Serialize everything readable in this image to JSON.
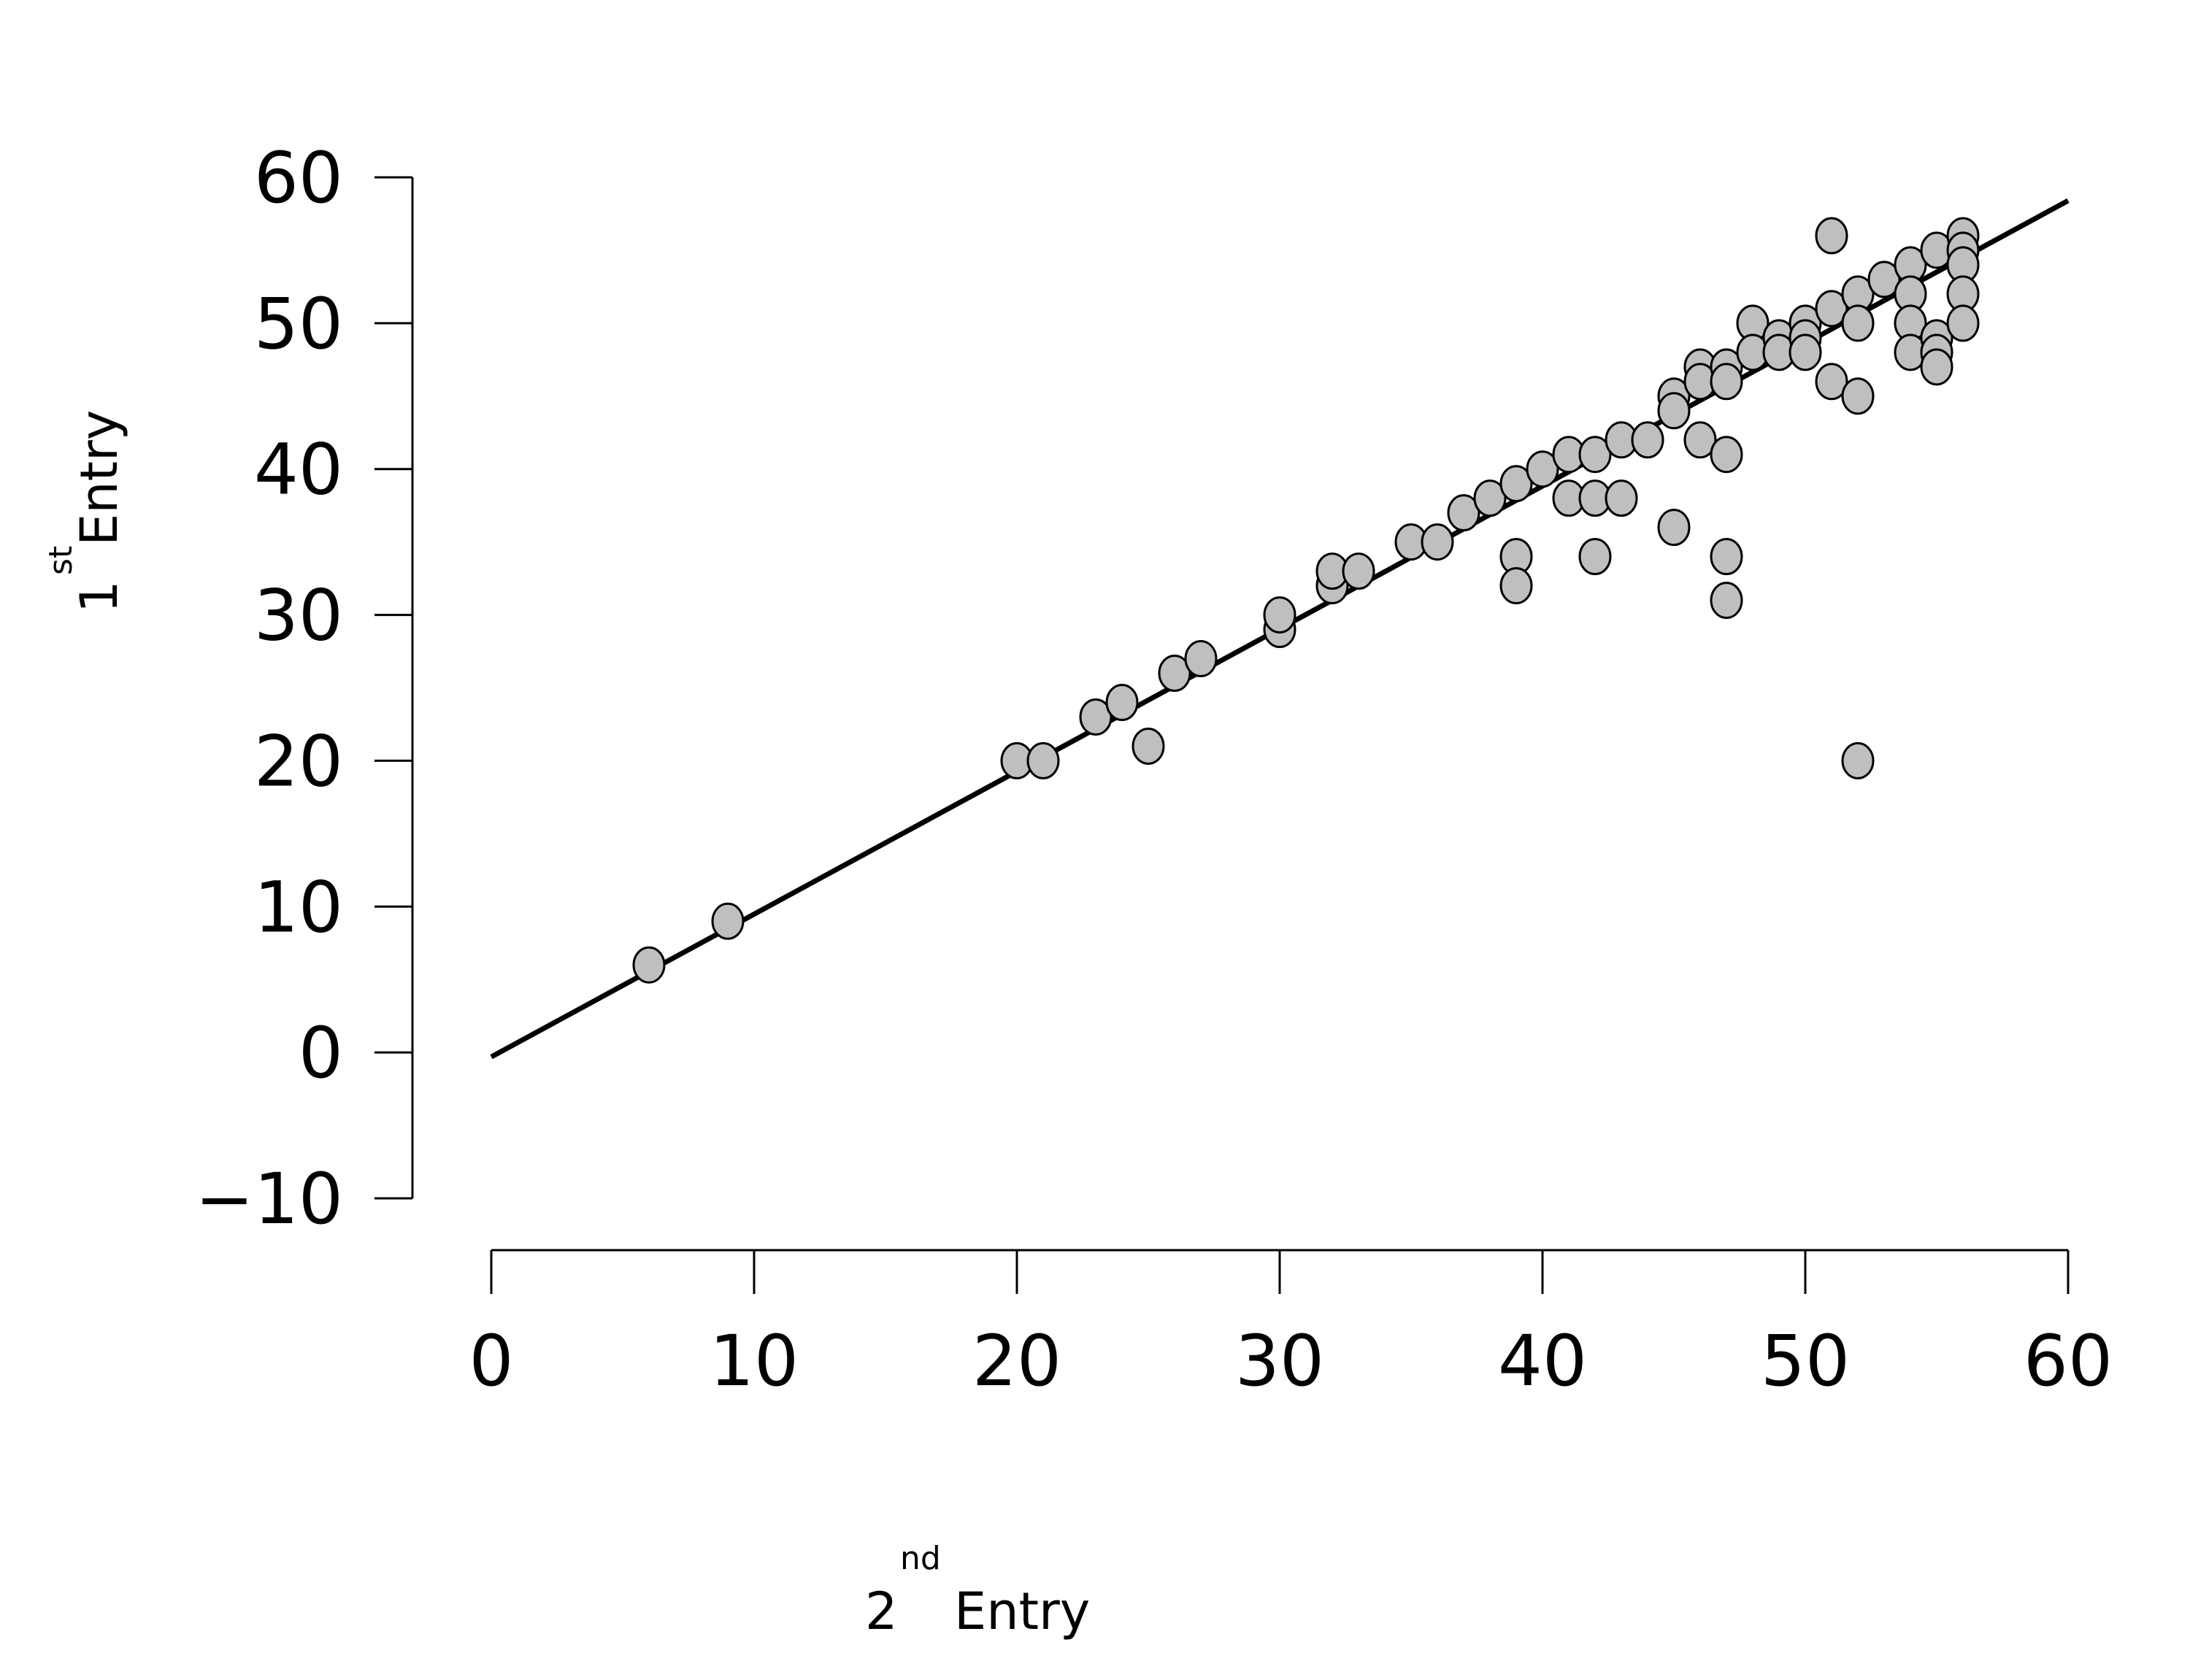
{
  "chart_data": {
    "type": "scatter",
    "title": "",
    "xlabel": {
      "base": "2",
      "sup": "nd",
      "rest": "Entry"
    },
    "ylabel": {
      "base": "1",
      "sup": "st",
      "rest": "Entry"
    },
    "xlim": [
      0,
      60
    ],
    "ylim": [
      -10,
      60
    ],
    "x_ticks": [
      0,
      10,
      20,
      30,
      40,
      50,
      60
    ],
    "y_ticks": [
      -10,
      0,
      10,
      20,
      30,
      40,
      50,
      60
    ],
    "x_tick_labels": [
      "0",
      "10",
      "20",
      "30",
      "40",
      "50",
      "60"
    ],
    "y_tick_labels": [
      "−10",
      "0",
      "10",
      "20",
      "30",
      "40",
      "50",
      "60"
    ],
    "grid": false,
    "legend": "none",
    "marker_fill": "#bfbfbf",
    "marker_edge": "#000000",
    "line_color": "#000000",
    "points": [
      [
        6,
        6
      ],
      [
        9,
        9
      ],
      [
        20,
        20
      ],
      [
        21,
        20
      ],
      [
        23,
        23
      ],
      [
        24,
        24
      ],
      [
        25,
        21
      ],
      [
        26,
        26
      ],
      [
        27,
        27
      ],
      [
        30,
        29
      ],
      [
        30,
        30
      ],
      [
        32,
        32
      ],
      [
        32,
        33
      ],
      [
        33,
        33
      ],
      [
        35,
        35
      ],
      [
        36,
        35
      ],
      [
        37,
        37
      ],
      [
        38,
        38
      ],
      [
        39,
        39
      ],
      [
        39,
        34
      ],
      [
        39,
        32
      ],
      [
        40,
        40
      ],
      [
        41,
        41
      ],
      [
        41,
        38
      ],
      [
        42,
        41
      ],
      [
        42,
        38
      ],
      [
        42,
        34
      ],
      [
        43,
        42
      ],
      [
        43,
        38
      ],
      [
        44,
        42
      ],
      [
        45,
        45
      ],
      [
        45,
        44
      ],
      [
        45,
        36
      ],
      [
        46,
        47
      ],
      [
        46,
        46
      ],
      [
        46,
        42
      ],
      [
        47,
        47
      ],
      [
        47,
        46
      ],
      [
        47,
        41
      ],
      [
        47,
        34
      ],
      [
        47,
        31
      ],
      [
        48,
        50
      ],
      [
        48,
        48
      ],
      [
        49,
        49
      ],
      [
        49,
        48
      ],
      [
        50,
        50
      ],
      [
        50,
        49
      ],
      [
        50,
        48
      ],
      [
        51,
        56
      ],
      [
        51,
        51
      ],
      [
        51,
        46
      ],
      [
        52,
        52
      ],
      [
        52,
        50
      ],
      [
        52,
        45
      ],
      [
        52,
        20
      ],
      [
        53,
        53
      ],
      [
        54,
        54
      ],
      [
        54,
        52
      ],
      [
        54,
        50
      ],
      [
        54,
        48
      ],
      [
        55,
        55
      ],
      [
        55,
        49
      ],
      [
        55,
        48
      ],
      [
        55,
        47
      ],
      [
        56,
        56
      ],
      [
        56,
        55
      ],
      [
        56,
        54
      ],
      [
        56,
        52
      ],
      [
        56,
        50
      ]
    ],
    "fit_line": {
      "x": [
        0,
        60
      ],
      "y": [
        -0.3,
        58.4
      ]
    }
  }
}
